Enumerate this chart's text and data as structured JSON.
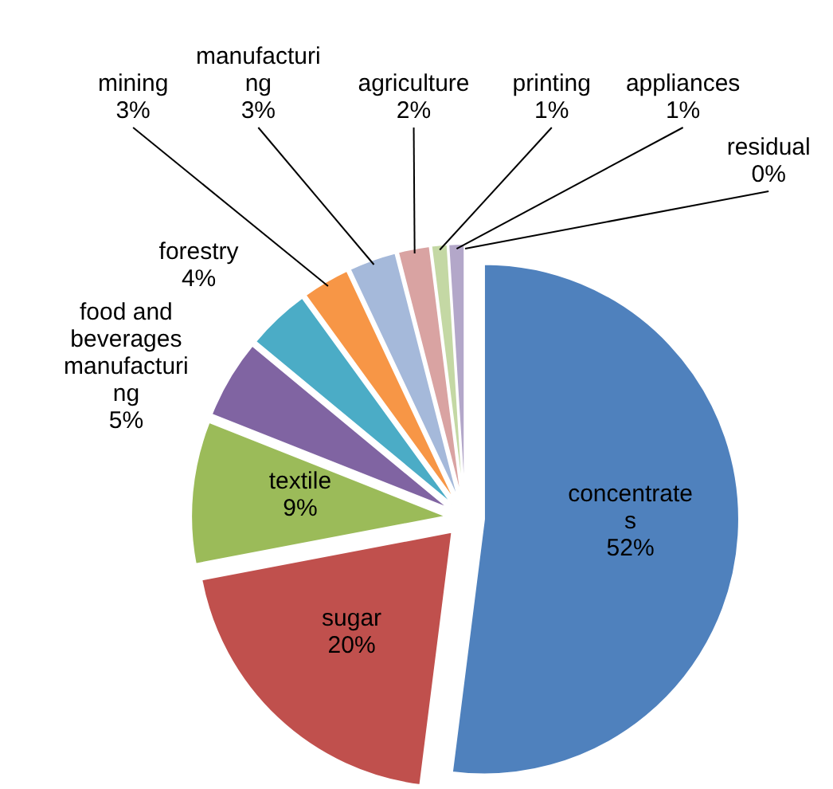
{
  "chart_data": {
    "type": "pie",
    "categories": [
      "concentrates",
      "sugar",
      "textile",
      "food and beverages manufacturing",
      "forestry",
      "mining",
      "manufacturing",
      "agriculture",
      "printing",
      "appliances",
      "residual"
    ],
    "values": [
      52,
      20,
      9,
      5,
      4,
      3,
      3,
      2,
      1,
      1,
      0
    ],
    "value_labels": [
      "52%",
      "20%",
      "9%",
      "5%",
      "4%",
      "3%",
      "3%",
      "2%",
      "1%",
      "1%",
      "0%"
    ],
    "colors": [
      "#4f81bd",
      "#c0504d",
      "#9bbb59",
      "#8064a2",
      "#4bacc6",
      "#f79646",
      "#a5b9da",
      "#d9a3a2",
      "#c4d8a4",
      "#b3a7c9",
      "#93cddd"
    ]
  }
}
